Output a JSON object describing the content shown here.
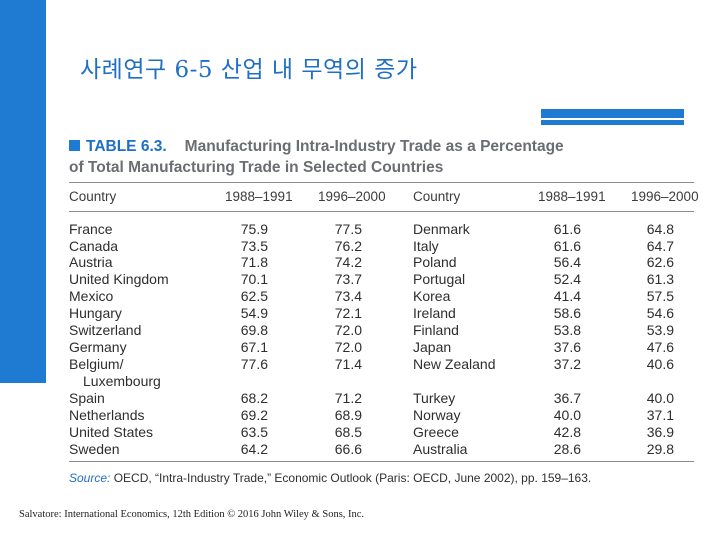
{
  "slide": {
    "title": "사례연구 6-5 산업 내 무역의 증가",
    "footer": "Salvatore: International Economics, 12th Edition © 2016 John Wiley & Sons, Inc."
  },
  "table": {
    "label": "TABLE 6.3.",
    "title_line1": "Manufacturing Intra-Industry Trade as a Percentage",
    "title_line2": "of Total Manufacturing Trade in Selected Countries",
    "headers": [
      "Country",
      "1988–1991",
      "1996–2000",
      "Country",
      "1988–1991",
      "1996–2000"
    ],
    "left_rows": [
      {
        "country": "France",
        "p1": "75.9",
        "p2": "77.5"
      },
      {
        "country": "Canada",
        "p1": "73.5",
        "p2": "76.2"
      },
      {
        "country": "Austria",
        "p1": "71.8",
        "p2": "74.2"
      },
      {
        "country": "United Kingdom",
        "p1": "70.1",
        "p2": "73.7"
      },
      {
        "country": "Mexico",
        "p1": "62.5",
        "p2": "73.4"
      },
      {
        "country": "Hungary",
        "p1": "54.9",
        "p2": "72.1"
      },
      {
        "country": "Switzerland",
        "p1": "69.8",
        "p2": "72.0"
      },
      {
        "country": "Germany",
        "p1": "67.1",
        "p2": "72.0"
      },
      {
        "country": "Belgium/",
        "country2": "Luxembourg",
        "p1": "77.6",
        "p2": "71.4"
      },
      {
        "country": "Spain",
        "p1": "68.2",
        "p2": "71.2"
      },
      {
        "country": "Netherlands",
        "p1": "69.2",
        "p2": "68.9"
      },
      {
        "country": "United States",
        "p1": "63.5",
        "p2": "68.5"
      },
      {
        "country": "Sweden",
        "p1": "64.2",
        "p2": "66.6"
      }
    ],
    "right_rows": [
      {
        "country": "Denmark",
        "p1": "61.6",
        "p2": "64.8"
      },
      {
        "country": "Italy",
        "p1": "61.6",
        "p2": "64.7"
      },
      {
        "country": "Poland",
        "p1": "56.4",
        "p2": "62.6"
      },
      {
        "country": "Portugal",
        "p1": "52.4",
        "p2": "61.3"
      },
      {
        "country": "Korea",
        "p1": "41.4",
        "p2": "57.5"
      },
      {
        "country": "Ireland",
        "p1": "58.6",
        "p2": "54.6"
      },
      {
        "country": "Finland",
        "p1": "53.8",
        "p2": "53.9"
      },
      {
        "country": "Japan",
        "p1": "37.6",
        "p2": "47.6"
      },
      {
        "country": "New Zealand",
        "p1": "37.2",
        "p2": "40.6"
      },
      {
        "country": "Turkey",
        "p1": "36.7",
        "p2": "40.0"
      },
      {
        "country": "Norway",
        "p1": "40.0",
        "p2": "37.1"
      },
      {
        "country": "Greece",
        "p1": "42.8",
        "p2": "36.9"
      },
      {
        "country": "Australia",
        "p1": "28.6",
        "p2": "29.8"
      }
    ],
    "source_label": "Source:",
    "source_text": " OECD, “Intra-Industry Trade,” Economic Outlook (Paris: OECD, June 2002), pp. 159–163."
  }
}
